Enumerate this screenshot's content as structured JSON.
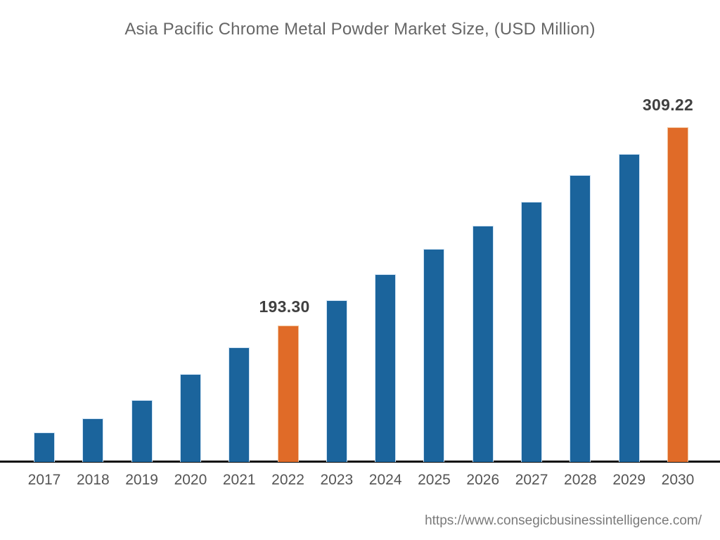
{
  "title": {
    "text": "Asia Pacific Chrome Metal Powder Market Size, (USD Million)"
  },
  "footer": {
    "url": "https://www.consegicbusinessintelligence.com/"
  },
  "colors": {
    "background": "#ffffff",
    "bar_default": "#1B649C",
    "bar_default_border": "#cfe3f5",
    "bar_highlight": "#E06B28",
    "bar_highlight_border": "#f2c49c",
    "axis_line": "#0a0a0a",
    "title_text": "#666666",
    "data_label_text": "#404040",
    "year_label_text": "#555555",
    "footer_text": "#7a7a7a"
  },
  "chart_data": {
    "type": "bar",
    "title": "Asia Pacific Chrome Metal Powder Market Size, (USD Million)",
    "xlabel": "",
    "ylabel": "USD Million",
    "categories": [
      "2017",
      "2018",
      "2019",
      "2020",
      "2021",
      "2022",
      "2023",
      "2024",
      "2025",
      "2026",
      "2027",
      "2028",
      "2029",
      "2030"
    ],
    "values": [
      130.9,
      139.1,
      149.8,
      165.0,
      180.6,
      193.3,
      208.2,
      223.4,
      238.2,
      251.7,
      265.7,
      281.3,
      293.7,
      309.22
    ],
    "highlighted_categories": [
      "2022",
      "2030"
    ],
    "data_labels": [
      {
        "category": "2022",
        "text": "193.30"
      },
      {
        "category": "2030",
        "text": "309.22"
      }
    ],
    "value_notes": "Only 2022 (193.30) and 2030 (309.22) carry visible data labels; other values estimated from bar heights",
    "ylim": [
      113.6,
      309.22
    ],
    "gridlines": false,
    "y_axis_visible": false,
    "legend": null
  }
}
